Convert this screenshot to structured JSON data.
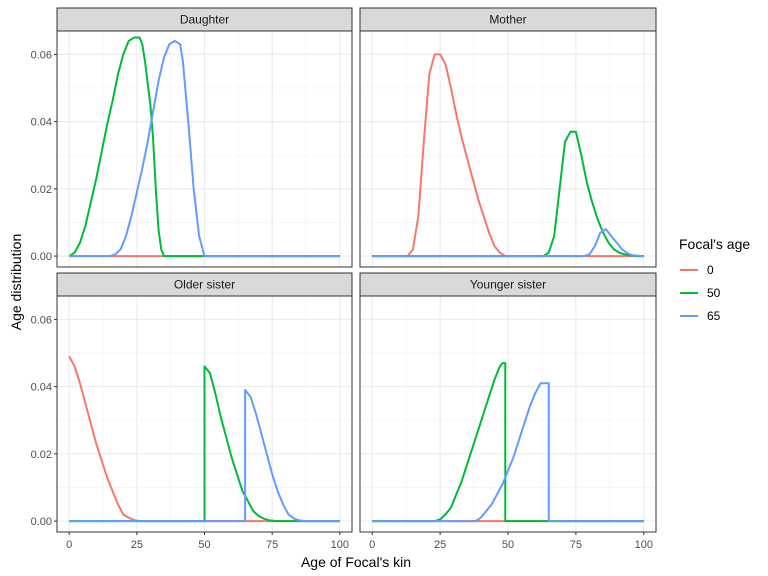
{
  "chart_data": {
    "type": "line",
    "xlabel": "Age of Focal's kin",
    "ylabel": "Age distribution",
    "xlim": [
      0,
      100
    ],
    "ylim": [
      0,
      0.065
    ],
    "x_ticks": [
      "0",
      "25",
      "50",
      "75",
      "100"
    ],
    "y_ticks": [
      "0.00",
      "0.02",
      "0.04",
      "0.06"
    ],
    "y_tick_values": [
      0,
      0.02,
      0.04,
      0.06
    ],
    "x_tick_values": [
      0,
      25,
      50,
      75,
      100
    ],
    "grid": true,
    "legend": {
      "title": "Focal's age",
      "placement": "right",
      "entries": [
        {
          "label": "0",
          "color": "#F8766D"
        },
        {
          "label": "50",
          "color": "#00BA38"
        },
        {
          "label": "65",
          "color": "#619CFF"
        }
      ]
    },
    "facets": [
      {
        "title": "Daughter",
        "series": [
          {
            "name": "0",
            "x": [
              0,
              100
            ],
            "y": [
              0,
              0
            ]
          },
          {
            "name": "50",
            "x": [
              0,
              2,
              4,
              6,
              8,
              10,
              12,
              14,
              16,
              18,
              20,
              22,
              24,
              26,
              27,
              28,
              30,
              31,
              32,
              33,
              34,
              35,
              100
            ],
            "y": [
              0,
              0.001,
              0.004,
              0.009,
              0.016,
              0.023,
              0.031,
              0.039,
              0.046,
              0.054,
              0.06,
              0.064,
              0.065,
              0.065,
              0.063,
              0.058,
              0.045,
              0.035,
              0.02,
              0.008,
              0.002,
              0,
              0
            ]
          },
          {
            "name": "65",
            "x": [
              0,
              15,
              17,
              19,
              21,
              23,
              25,
              27,
              29,
              31,
              33,
              35,
              37,
              39,
              41,
              42,
              44,
              46,
              48,
              50,
              100
            ],
            "y": [
              0,
              0,
              0.0005,
              0.002,
              0.006,
              0.012,
              0.019,
              0.026,
              0.034,
              0.043,
              0.052,
              0.059,
              0.063,
              0.064,
              0.063,
              0.058,
              0.04,
              0.02,
              0.006,
              0,
              0
            ]
          }
        ]
      },
      {
        "title": "Mother",
        "series": [
          {
            "name": "0",
            "x": [
              0,
              13,
              15,
              17,
              19,
              21,
              23,
              25,
              27,
              29,
              31,
              33,
              35,
              37,
              39,
              41,
              43,
              45,
              47,
              49,
              51,
              100
            ],
            "y": [
              0,
              0,
              0.002,
              0.012,
              0.034,
              0.054,
              0.06,
              0.06,
              0.057,
              0.05,
              0.042,
              0.035,
              0.029,
              0.023,
              0.017,
              0.012,
              0.007,
              0.003,
              0.001,
              0,
              0,
              0
            ]
          },
          {
            "name": "50",
            "x": [
              0,
              63,
              65,
              67,
              69,
              71,
              73,
              75,
              77,
              79,
              81,
              83,
              85,
              87,
              89,
              91,
              93,
              95,
              97,
              100
            ],
            "y": [
              0,
              0,
              0.001,
              0.006,
              0.02,
              0.034,
              0.037,
              0.037,
              0.03,
              0.022,
              0.016,
              0.011,
              0.007,
              0.004,
              0.002,
              0.001,
              0.0005,
              0.0002,
              0,
              0
            ]
          },
          {
            "name": "65",
            "x": [
              0,
              78,
              80,
              82,
              84,
              86,
              88,
              90,
              92,
              94,
              96,
              100
            ],
            "y": [
              0,
              0,
              0.0005,
              0.003,
              0.007,
              0.008,
              0.006,
              0.004,
              0.002,
              0.0008,
              0.0002,
              0
            ]
          }
        ]
      },
      {
        "title": "Older sister",
        "series": [
          {
            "name": "0",
            "x": [
              0,
              2,
              4,
              6,
              8,
              10,
              12,
              14,
              16,
              18,
              20,
              22,
              24,
              26,
              100
            ],
            "y": [
              0.049,
              0.046,
              0.041,
              0.035,
              0.029,
              0.023,
              0.018,
              0.013,
              0.009,
              0.005,
              0.002,
              0.001,
              0.0003,
              0,
              0
            ]
          },
          {
            "name": "50",
            "x": [
              0,
              50,
              50,
              52,
              54,
              56,
              58,
              60,
              62,
              64,
              66,
              68,
              70,
              72,
              74,
              76,
              78,
              100
            ],
            "y": [
              0,
              0,
              0.046,
              0.044,
              0.038,
              0.031,
              0.025,
              0.019,
              0.014,
              0.009,
              0.006,
              0.003,
              0.0015,
              0.0007,
              0.0002,
              5e-05,
              0,
              0
            ]
          },
          {
            "name": "65",
            "x": [
              0,
              65,
              65,
              67,
              69,
              71,
              73,
              75,
              77,
              79,
              81,
              83,
              85,
              87,
              100
            ],
            "y": [
              0,
              0,
              0.039,
              0.037,
              0.032,
              0.026,
              0.02,
              0.014,
              0.009,
              0.005,
              0.002,
              0.0008,
              0.0002,
              0,
              0
            ]
          }
        ]
      },
      {
        "title": "Younger sister",
        "series": [
          {
            "name": "0",
            "x": [
              0,
              100
            ],
            "y": [
              0,
              0
            ]
          },
          {
            "name": "50",
            "x": [
              0,
              23,
              25,
              27,
              29,
              31,
              33,
              35,
              37,
              39,
              41,
              43,
              45,
              47,
              48,
              49,
              49,
              100
            ],
            "y": [
              0,
              0,
              0.0005,
              0.002,
              0.004,
              0.008,
              0.012,
              0.017,
              0.022,
              0.027,
              0.032,
              0.037,
              0.042,
              0.046,
              0.047,
              0.047,
              0,
              0
            ]
          },
          {
            "name": "65",
            "x": [
              0,
              38,
              40,
              42,
              44,
              46,
              48,
              50,
              52,
              54,
              56,
              58,
              60,
              62,
              64,
              65,
              65,
              100
            ],
            "y": [
              0,
              0,
              0.001,
              0.003,
              0.005,
              0.008,
              0.011,
              0.015,
              0.019,
              0.024,
              0.029,
              0.034,
              0.038,
              0.041,
              0.041,
              0.041,
              0,
              0
            ]
          }
        ]
      }
    ]
  }
}
